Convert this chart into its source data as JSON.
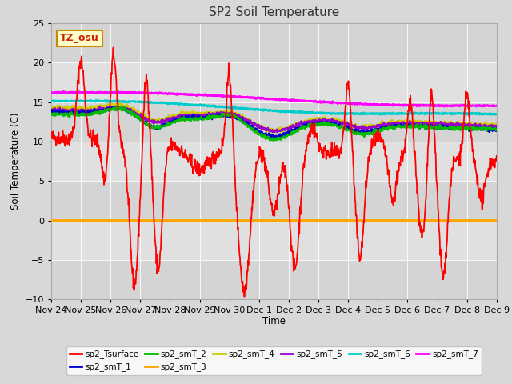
{
  "title": "SP2 Soil Temperature",
  "xlabel": "Time",
  "ylabel": "Soil Temperature (C)",
  "ylim": [
    -10,
    25
  ],
  "yticks": [
    -10,
    -5,
    0,
    5,
    10,
    15,
    20,
    25
  ],
  "xtick_labels": [
    "Nov 24",
    "Nov 25",
    "Nov 26",
    "Nov 27",
    "Nov 28",
    "Nov 29",
    "Nov 30",
    "Dec 1",
    "Dec 2",
    "Dec 3",
    "Dec 4",
    "Dec 5",
    "Dec 6",
    "Dec 7",
    "Dec 8",
    "Dec 9"
  ],
  "tz_label": "TZ_osu",
  "series_colors": {
    "sp2_Tsurface": "#ff0000",
    "sp2_smT_1": "#0000cc",
    "sp2_smT_2": "#00bb00",
    "sp2_smT_3": "#ffa500",
    "sp2_smT_4": "#cccc00",
    "sp2_smT_5": "#9900cc",
    "sp2_smT_6": "#00cccc",
    "sp2_smT_7": "#ff00ff"
  }
}
